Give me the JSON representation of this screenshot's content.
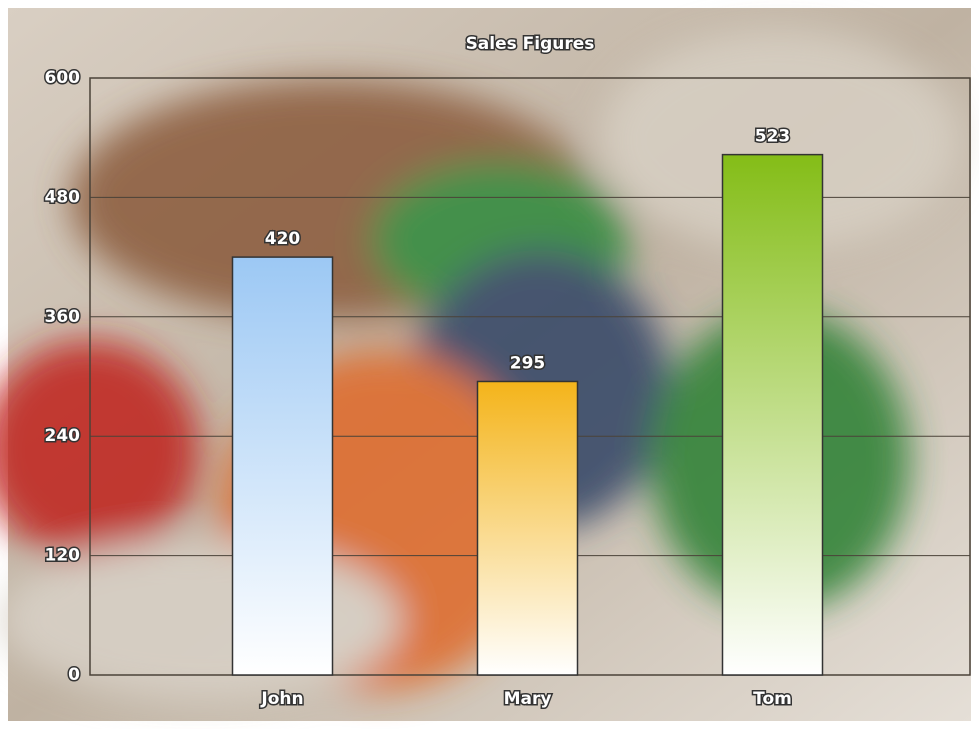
{
  "chart_data": {
    "type": "bar",
    "title": "Sales Figures",
    "categories": [
      "John",
      "Mary",
      "Tom"
    ],
    "values": [
      420,
      295,
      523
    ],
    "colors": [
      "#9cc8f4",
      "#f4b41a",
      "#84bd17"
    ],
    "ylim": [
      0,
      600
    ],
    "yticks": [
      0,
      120,
      240,
      360,
      480,
      600
    ],
    "grid": true
  }
}
